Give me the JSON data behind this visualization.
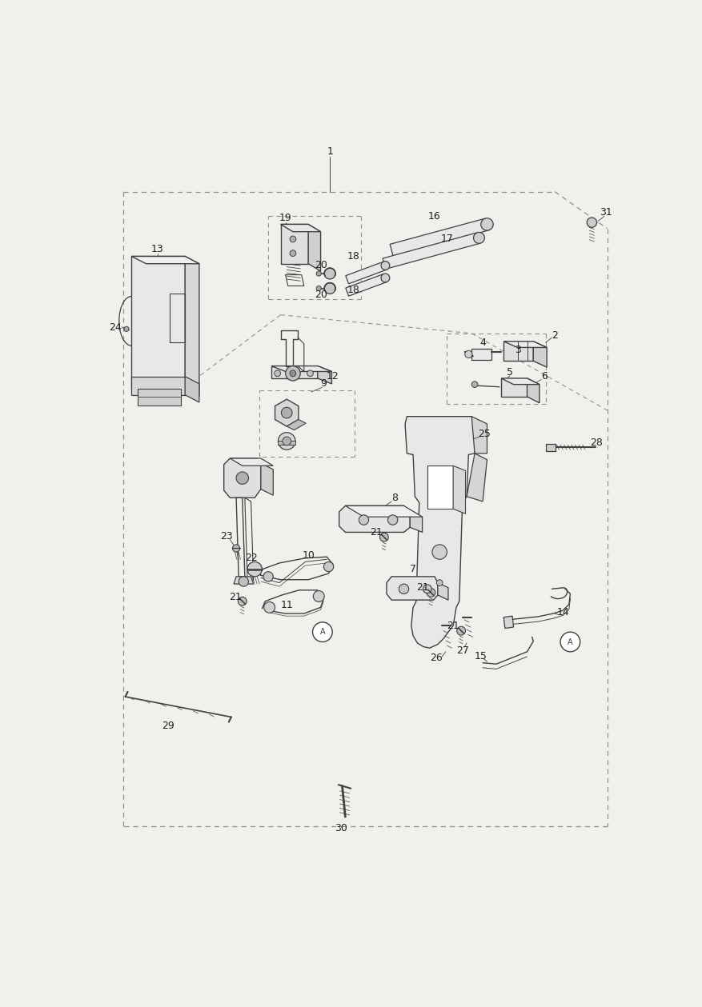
{
  "title": "",
  "bg_color": "#f0f0ec",
  "line_color": "#404040",
  "dashed_color": "#909090",
  "label_color": "#202020",
  "fig_width": 8.77,
  "fig_height": 12.59,
  "dpi": 100
}
